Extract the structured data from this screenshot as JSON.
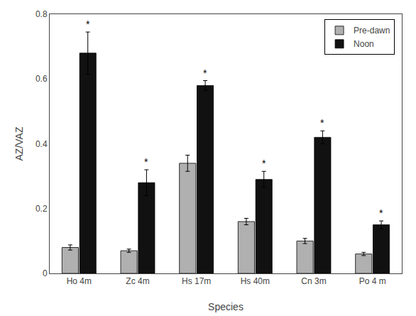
{
  "chart_data": {
    "type": "bar",
    "xlabel": "Species",
    "ylabel": "AZ/VAZ",
    "categories": [
      "Ho 4m",
      "Zc 4m",
      "Hs 17m",
      "Hs 40m",
      "Cn 3m",
      "Po 4 m"
    ],
    "series": [
      {
        "name": "Pre-dawn",
        "color": "#b0b0b0",
        "values": [
          0.08,
          0.07,
          0.34,
          0.16,
          0.1,
          0.06
        ],
        "errors": [
          0.008,
          0.005,
          0.025,
          0.01,
          0.008,
          0.005
        ]
      },
      {
        "name": "Noon",
        "color": "#111111",
        "values": [
          0.68,
          0.28,
          0.58,
          0.29,
          0.42,
          0.15
        ],
        "errors": [
          0.065,
          0.04,
          0.015,
          0.025,
          0.02,
          0.012
        ]
      }
    ],
    "annotations": [
      {
        "series": "Noon",
        "category": "Ho 4m",
        "text": "*"
      },
      {
        "series": "Noon",
        "category": "Zc 4m",
        "text": "*"
      },
      {
        "series": "Noon",
        "category": "Hs 17m",
        "text": "*"
      },
      {
        "series": "Noon",
        "category": "Hs 40m",
        "text": "*"
      },
      {
        "series": "Noon",
        "category": "Cn 3m",
        "text": "*"
      },
      {
        "series": "Noon",
        "category": "Po 4 m",
        "text": "*"
      }
    ],
    "ylim": [
      0.0,
      0.8
    ],
    "yticks": [
      0.0,
      0.2,
      0.4,
      0.6,
      0.8
    ],
    "grid": false,
    "legend": "upper right"
  }
}
